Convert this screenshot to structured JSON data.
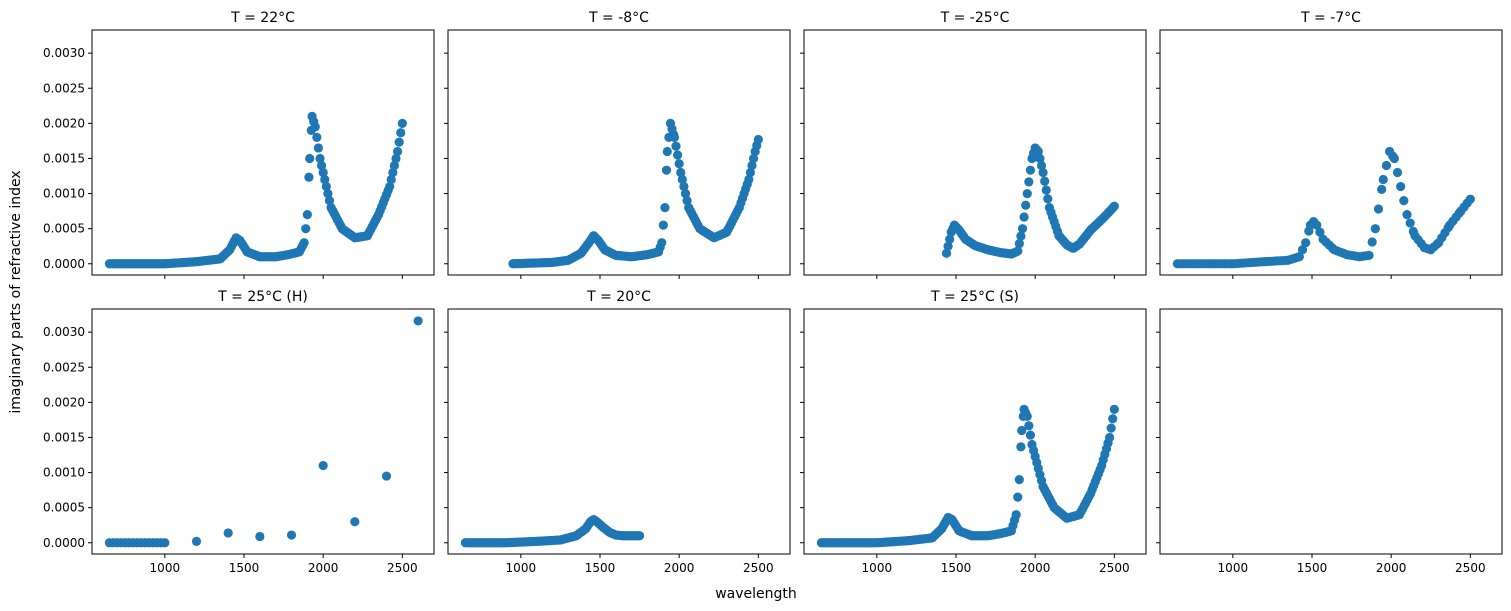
{
  "chart_data": {
    "type": "scatter",
    "xlabel": "wavelength",
    "ylabel": "imaginary parts of refractive index",
    "shared_xlim": [
      540,
      2700
    ],
    "shared_ylim": [
      -0.00016,
      0.00333
    ],
    "xticks": [
      1000,
      1500,
      2000,
      2500
    ],
    "yticks": [
      0.0,
      0.0005,
      0.001,
      0.0015,
      0.002,
      0.0025,
      0.003
    ],
    "ytick_labels": [
      "0.0000",
      "0.0005",
      "0.0010",
      "0.0015",
      "0.0020",
      "0.0025",
      "0.0030"
    ],
    "color": "#1f77b4",
    "panels": [
      {
        "title": "T = 22°C",
        "curve": [
          [
            650,
            0
          ],
          [
            1000,
            0
          ],
          [
            1200,
            3e-05
          ],
          [
            1350,
            7e-05
          ],
          [
            1410,
            0.0002
          ],
          [
            1450,
            0.00037
          ],
          [
            1475,
            0.00033
          ],
          [
            1520,
            0.00017
          ],
          [
            1600,
            0.0001
          ],
          [
            1700,
            0.0001
          ],
          [
            1780,
            0.00013
          ],
          [
            1850,
            0.00017
          ],
          [
            1880,
            0.0003
          ],
          [
            1900,
            0.0007
          ],
          [
            1915,
            0.0015
          ],
          [
            1930,
            0.0021
          ],
          [
            1950,
            0.00195
          ],
          [
            1980,
            0.0015
          ],
          [
            2050,
            0.0008
          ],
          [
            2120,
            0.0005
          ],
          [
            2200,
            0.00037
          ],
          [
            2280,
            0.0004
          ],
          [
            2350,
            0.0007
          ],
          [
            2420,
            0.0011
          ],
          [
            2470,
            0.0016
          ],
          [
            2500,
            0.002
          ]
        ],
        "step": 10
      },
      {
        "title": "T = -8°C",
        "curve": [
          [
            950,
            0
          ],
          [
            1200,
            2e-05
          ],
          [
            1300,
            5e-05
          ],
          [
            1380,
            0.00015
          ],
          [
            1430,
            0.0003
          ],
          [
            1460,
            0.0004
          ],
          [
            1490,
            0.00033
          ],
          [
            1530,
            0.0002
          ],
          [
            1600,
            0.00012
          ],
          [
            1700,
            0.0001
          ],
          [
            1800,
            0.00013
          ],
          [
            1870,
            0.00017
          ],
          [
            1890,
            0.0003
          ],
          [
            1910,
            0.0008
          ],
          [
            1925,
            0.0016
          ],
          [
            1945,
            0.002
          ],
          [
            1970,
            0.0018
          ],
          [
            2010,
            0.0013
          ],
          [
            2060,
            0.0008
          ],
          [
            2130,
            0.0005
          ],
          [
            2220,
            0.00037
          ],
          [
            2300,
            0.00045
          ],
          [
            2380,
            0.0008
          ],
          [
            2440,
            0.0012
          ],
          [
            2480,
            0.0016
          ],
          [
            2500,
            0.00177
          ]
        ],
        "step": 10
      },
      {
        "title": "T = -25°C",
        "curve": [
          [
            1440,
            0.00015
          ],
          [
            1470,
            0.00045
          ],
          [
            1490,
            0.00055
          ],
          [
            1520,
            0.00048
          ],
          [
            1560,
            0.00035
          ],
          [
            1620,
            0.00026
          ],
          [
            1700,
            0.0002
          ],
          [
            1780,
            0.00016
          ],
          [
            1850,
            0.00014
          ],
          [
            1890,
            0.00018
          ],
          [
            1920,
            0.0005
          ],
          [
            1950,
            0.001
          ],
          [
            1980,
            0.0015
          ],
          [
            2000,
            0.00165
          ],
          [
            2020,
            0.0016
          ],
          [
            2050,
            0.0013
          ],
          [
            2090,
            0.0008
          ],
          [
            2150,
            0.0004
          ],
          [
            2200,
            0.00027
          ],
          [
            2240,
            0.00022
          ],
          [
            2280,
            0.00028
          ],
          [
            2350,
            0.00048
          ],
          [
            2430,
            0.00065
          ],
          [
            2500,
            0.00082
          ]
        ],
        "step": 10
      },
      {
        "title": "T = -7°C",
        "curve": [
          [
            650,
            0
          ],
          [
            1000,
            0
          ],
          [
            1200,
            3e-05
          ],
          [
            1350,
            5e-05
          ],
          [
            1420,
            0.0001
          ],
          [
            1460,
            0.0003
          ],
          [
            1490,
            0.00055
          ],
          [
            1510,
            0.0006
          ],
          [
            1530,
            0.00055
          ],
          [
            1570,
            0.00035
          ],
          [
            1640,
            0.0002
          ],
          [
            1720,
            0.00013
          ],
          [
            1800,
            0.0001
          ],
          [
            1860,
            0.00012
          ],
          [
            1900,
            0.0005
          ],
          [
            1950,
            0.0012
          ],
          [
            1990,
            0.0016
          ],
          [
            2020,
            0.0015
          ],
          [
            2060,
            0.0011
          ],
          [
            2100,
            0.0007
          ],
          [
            2150,
            0.0004
          ],
          [
            2210,
            0.00023
          ],
          [
            2250,
            0.0002
          ],
          [
            2300,
            0.0003
          ],
          [
            2370,
            0.00055
          ],
          [
            2440,
            0.00075
          ],
          [
            2500,
            0.00092
          ]
        ],
        "step": 20
      },
      {
        "title": "T = 25°C (H)",
        "points": [
          [
            650,
            0
          ],
          [
            675,
            0
          ],
          [
            700,
            0
          ],
          [
            725,
            0
          ],
          [
            750,
            0
          ],
          [
            775,
            0
          ],
          [
            800,
            0
          ],
          [
            825,
            0
          ],
          [
            850,
            0
          ],
          [
            875,
            0
          ],
          [
            900,
            0
          ],
          [
            925,
            0
          ],
          [
            950,
            0
          ],
          [
            975,
            0
          ],
          [
            1000,
            0
          ],
          [
            1200,
            2e-05
          ],
          [
            1400,
            0.00014
          ],
          [
            1600,
            9e-05
          ],
          [
            1800,
            0.00011
          ],
          [
            2000,
            0.0011
          ],
          [
            2200,
            0.0003
          ],
          [
            2400,
            0.00095
          ],
          [
            2600,
            0.00316
          ]
        ]
      },
      {
        "title": "T = 20°C",
        "curve": [
          [
            650,
            0
          ],
          [
            900,
            0
          ],
          [
            1100,
            2e-05
          ],
          [
            1250,
            4e-05
          ],
          [
            1350,
            0.0001
          ],
          [
            1410,
            0.0002
          ],
          [
            1440,
            0.0003
          ],
          [
            1460,
            0.00033
          ],
          [
            1480,
            0.0003
          ],
          [
            1520,
            0.00022
          ],
          [
            1560,
            0.00015
          ],
          [
            1600,
            0.00011
          ],
          [
            1650,
            0.0001
          ],
          [
            1750,
            0.0001
          ]
        ],
        "step": 10
      },
      {
        "title": "T = 25°C (S)",
        "curve": [
          [
            650,
            0
          ],
          [
            1000,
            0
          ],
          [
            1200,
            3e-05
          ],
          [
            1350,
            7e-05
          ],
          [
            1410,
            0.0002
          ],
          [
            1450,
            0.00036
          ],
          [
            1475,
            0.00033
          ],
          [
            1520,
            0.00017
          ],
          [
            1600,
            0.0001
          ],
          [
            1700,
            0.0001
          ],
          [
            1780,
            0.00013
          ],
          [
            1850,
            0.00017
          ],
          [
            1880,
            0.0004
          ],
          [
            1900,
            0.0009
          ],
          [
            1915,
            0.0016
          ],
          [
            1930,
            0.0019
          ],
          [
            1950,
            0.0018
          ],
          [
            1980,
            0.0014
          ],
          [
            2050,
            0.0008
          ],
          [
            2120,
            0.0005
          ],
          [
            2200,
            0.00035
          ],
          [
            2280,
            0.0004
          ],
          [
            2350,
            0.0007
          ],
          [
            2420,
            0.0011
          ],
          [
            2470,
            0.0015
          ],
          [
            2500,
            0.0019
          ]
        ],
        "step": 10
      },
      {
        "title": "",
        "points": []
      }
    ]
  }
}
